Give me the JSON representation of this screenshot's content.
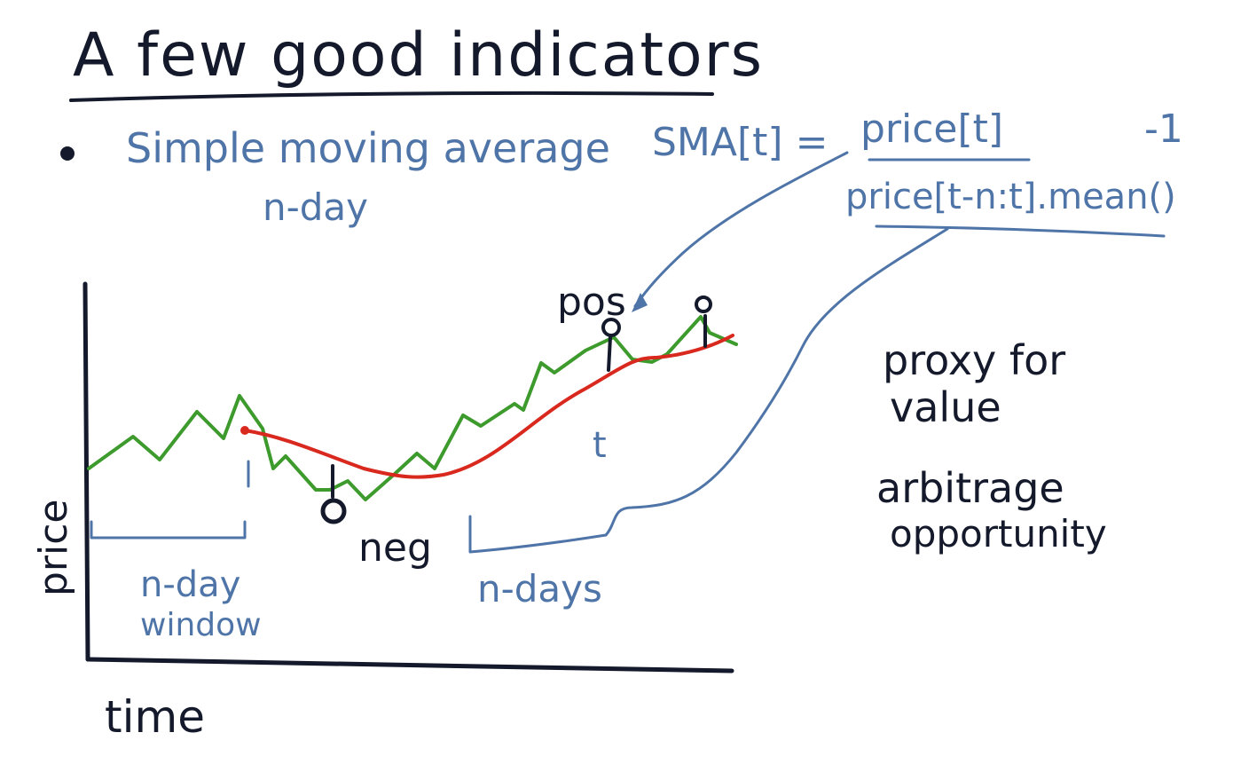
{
  "title": "A few good indicators",
  "bullet": {
    "label": "Simple moving average",
    "sublabel": "n-day",
    "formula_lhs": "SMA[t] =",
    "formula_numerator": "price[t]",
    "formula_minus": "-1",
    "formula_denominator": "price[t-n:t].mean()"
  },
  "chart": {
    "ylabel": "price",
    "xlabel": "time",
    "window_label_line1": "n-day",
    "window_label_line2": "window",
    "t_label": "t",
    "ndays_label": "n-days",
    "pos_label": "pos",
    "neg_label": "neg",
    "colors": {
      "price": "#3d9a2c",
      "sma": "#d9281e",
      "ink": "#141a2b",
      "annotation": "#4f75a8"
    }
  },
  "notes": {
    "line1": "proxy for",
    "line2": "value",
    "line3": "arbitrage",
    "line4": "opportunity"
  }
}
